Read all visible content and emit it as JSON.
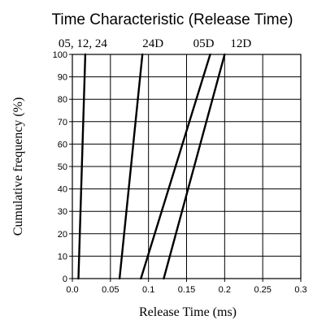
{
  "chart_data": {
    "type": "line",
    "title": "Time Characteristic (Release Time)",
    "xlabel": "Release Time (ms)",
    "ylabel": "Cumulative frequency (%)",
    "xlim": [
      0,
      0.3
    ],
    "ylim": [
      0,
      100
    ],
    "xticks": [
      "0.0",
      "0.05",
      "0.1",
      "0.15",
      "0.2",
      "0.25",
      "0.3"
    ],
    "yticks": [
      "0",
      "10",
      "20",
      "30",
      "40",
      "50",
      "60",
      "70",
      "80",
      "90",
      "100"
    ],
    "grid": true,
    "series": [
      {
        "name": "05, 12, 24",
        "x": [
          0.008,
          0.017
        ],
        "y": [
          0,
          100
        ]
      },
      {
        "name": "24D",
        "x": [
          0.062,
          0.092
        ],
        "y": [
          0,
          100
        ]
      },
      {
        "name": "05D",
        "x": [
          0.09,
          0.181
        ],
        "y": [
          0,
          100
        ]
      },
      {
        "name": "12D",
        "x": [
          0.12,
          0.2
        ],
        "y": [
          0,
          100
        ]
      }
    ]
  }
}
